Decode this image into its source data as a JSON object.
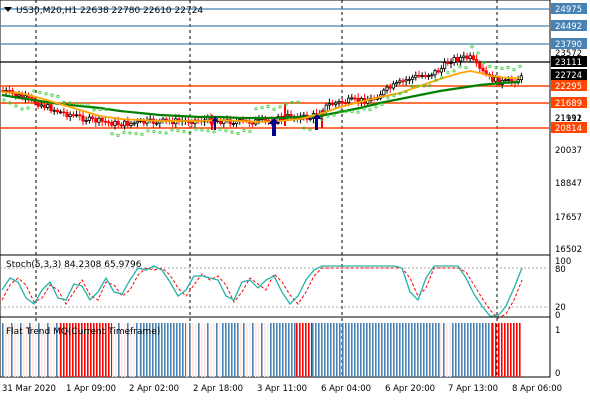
{
  "header": {
    "title": "US30,M20,H1  22638 22780 22610 22724",
    "arrow_icon": "triangle-down-icon"
  },
  "price_axis": {
    "labels": [
      "24975",
      "24492",
      "23790",
      "23572",
      "23111",
      "22724",
      "22295",
      "21911",
      "21689",
      "21192",
      "20814",
      "20037",
      "18847",
      "17657",
      "16502"
    ],
    "badges": [
      {
        "label": "24975",
        "color": "#4682b4"
      },
      {
        "label": "24492",
        "color": "#4682b4"
      },
      {
        "label": "23790",
        "color": "#4682b4"
      },
      {
        "label": "23111",
        "color": "#000000"
      },
      {
        "label": "22724",
        "color": "#000000"
      },
      {
        "label": "22295",
        "color": "#ff4500"
      },
      {
        "label": "21689",
        "color": "#ff4500"
      },
      {
        "label": "20814",
        "color": "#ff4500"
      }
    ]
  },
  "stoch": {
    "title": "Stoch(5,3,3) 84.2308 65.9796",
    "labels": [
      "100",
      "80",
      "20",
      "0"
    ]
  },
  "flat_trend": {
    "title": "Flat Trend MQ(Current Timeframe)",
    "labels": [
      "1",
      "0"
    ]
  },
  "time_axis": {
    "labels": [
      "31 Mar 2020",
      "1 Apr 09:00",
      "2 Apr 02:00",
      "2 Apr 18:00",
      "3 Apr 11:00",
      "6 Apr 04:00",
      "6 Apr 20:00",
      "7 Apr 13:00",
      "8 Apr 06:00"
    ]
  },
  "colors": {
    "bull": "#000000",
    "bear": "#ff0000",
    "ema_fast": "#ffa500",
    "ema_slow": "#008000",
    "sar": "#32cd32",
    "resistance": "#4682b4",
    "support": "#ff4500",
    "stoch_main": "#20b2aa",
    "stoch_signal": "#ff0000",
    "trend_up": "#4682b4",
    "trend_down": "#ff0000"
  }
}
